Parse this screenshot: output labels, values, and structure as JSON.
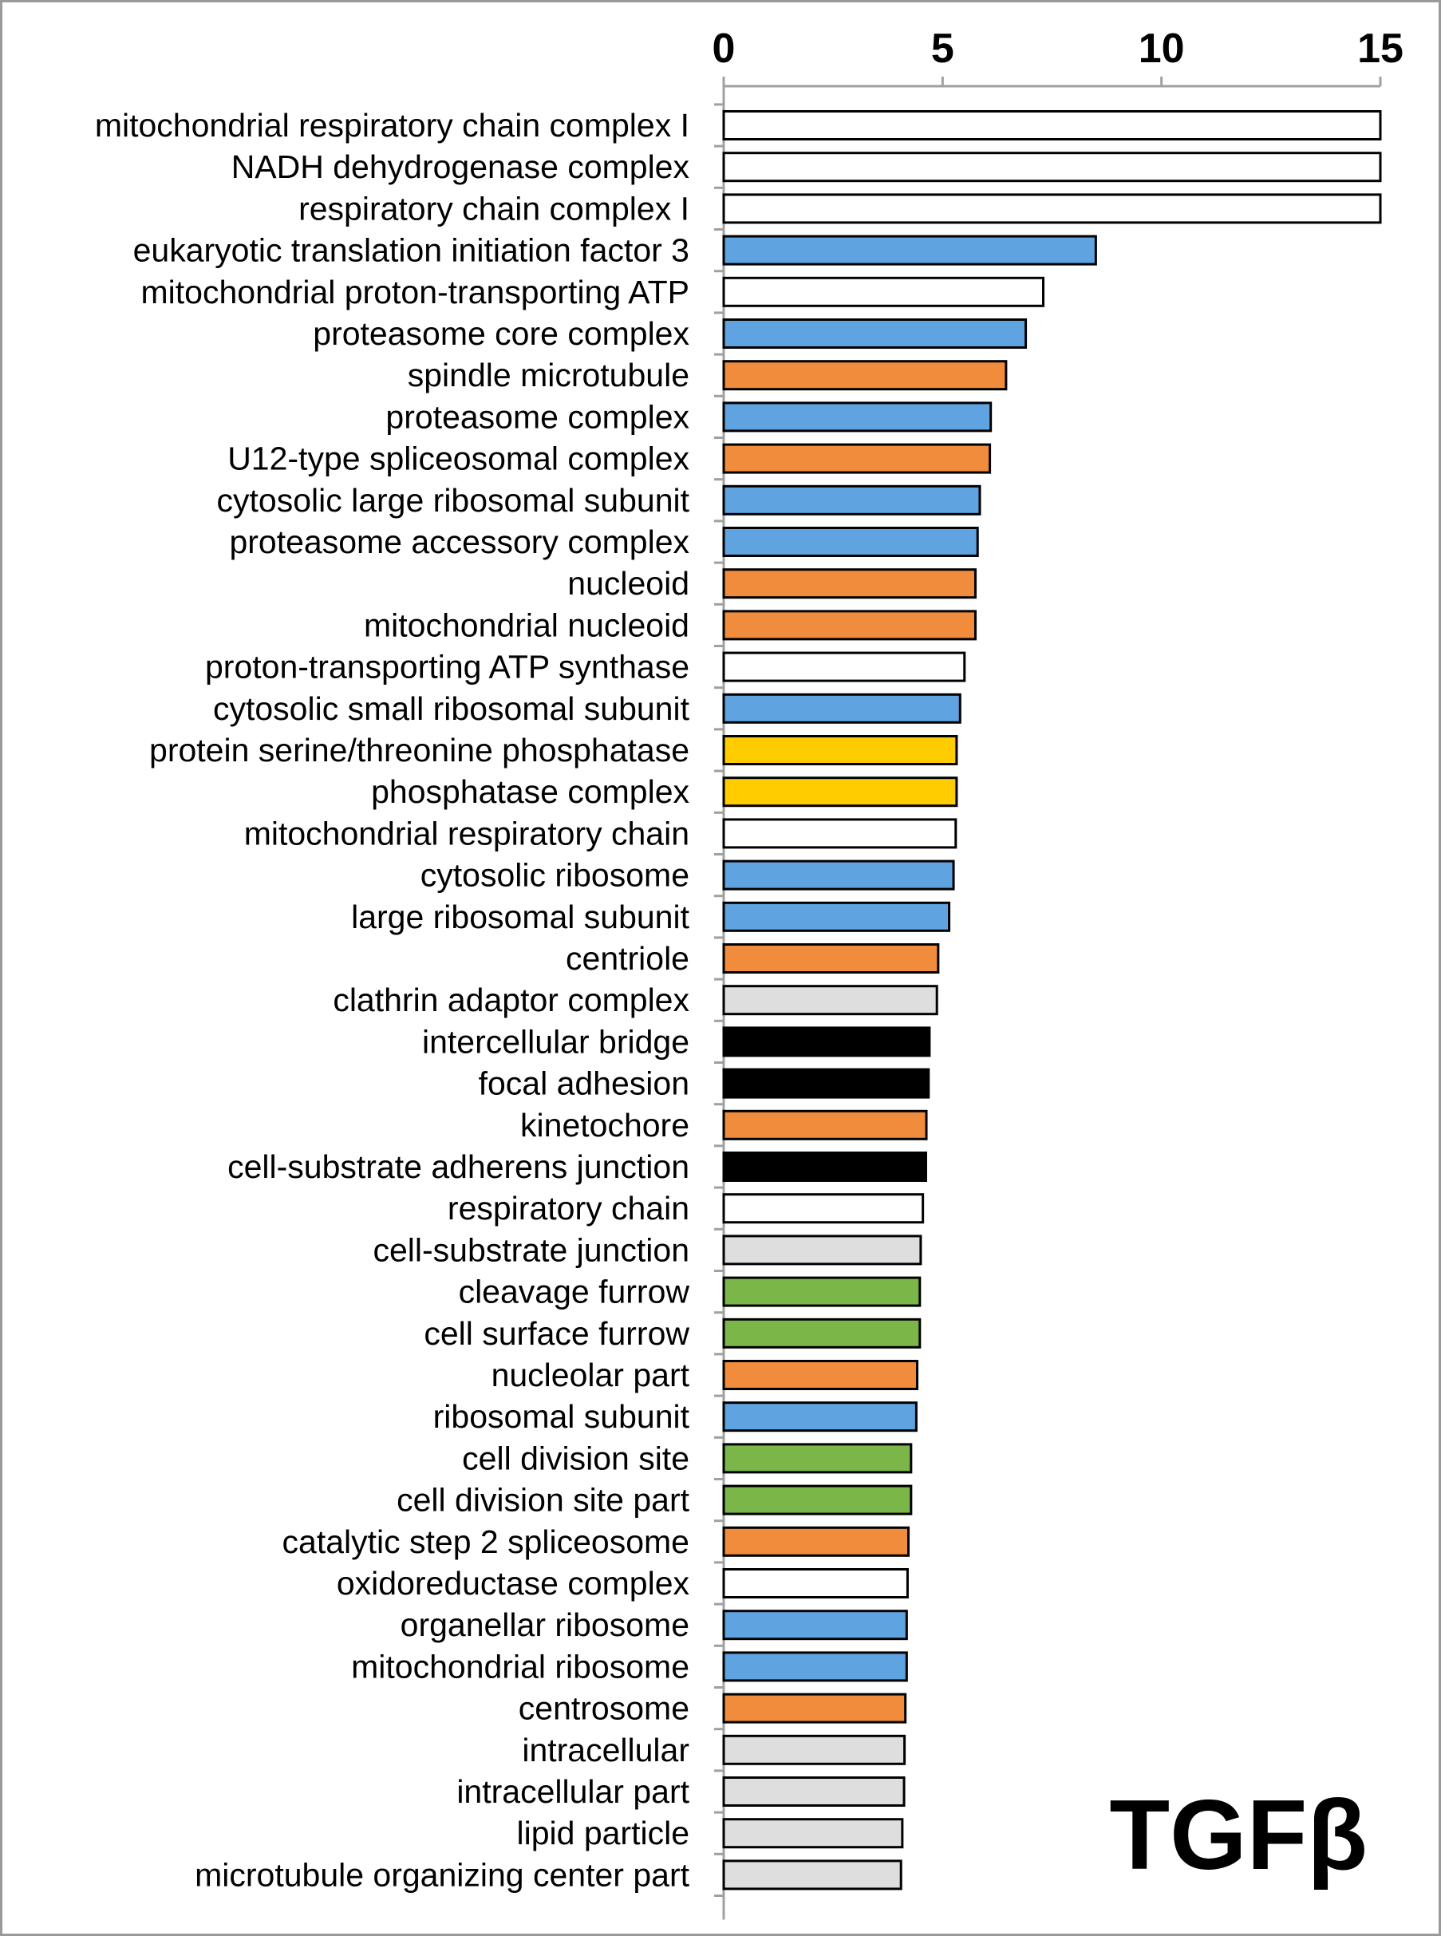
{
  "chart_data": {
    "type": "bar",
    "orientation": "horizontal",
    "title": "",
    "xlabel": "",
    "ylabel": "",
    "xlim": [
      0,
      15
    ],
    "xticks": [
      0,
      5,
      10,
      15
    ],
    "grid": false,
    "annotation": "TGFβ",
    "category_colors": {
      "white": "#ffffff",
      "blue": "#5fa3e0",
      "orange": "#f08c3c",
      "yellow": "#ffcc00",
      "gray": "#dedede",
      "black": "#000000",
      "green": "#7ab648"
    },
    "bars": [
      {
        "label": "mitochondrial respiratory chain complex I",
        "value": 15.0,
        "color": "white"
      },
      {
        "label": "NADH dehydrogenase complex",
        "value": 15.0,
        "color": "white"
      },
      {
        "label": "respiratory chain complex I",
        "value": 15.0,
        "color": "white"
      },
      {
        "label": "eukaryotic translation initiation factor 3",
        "value": 8.5,
        "color": "blue"
      },
      {
        "label": "mitochondrial proton-transporting ATP",
        "value": 7.3,
        "color": "white"
      },
      {
        "label": "proteasome core complex",
        "value": 6.9,
        "color": "blue"
      },
      {
        "label": "spindle microtubule",
        "value": 6.45,
        "color": "orange"
      },
      {
        "label": "proteasome complex",
        "value": 6.1,
        "color": "blue"
      },
      {
        "label": "U12-type spliceosomal complex",
        "value": 6.08,
        "color": "orange"
      },
      {
        "label": "cytosolic large ribosomal subunit",
        "value": 5.85,
        "color": "blue"
      },
      {
        "label": "proteasome accessory complex",
        "value": 5.8,
        "color": "blue"
      },
      {
        "label": "nucleoid",
        "value": 5.75,
        "color": "orange"
      },
      {
        "label": "mitochondrial nucleoid",
        "value": 5.75,
        "color": "orange"
      },
      {
        "label": "proton-transporting ATP synthase",
        "value": 5.5,
        "color": "white"
      },
      {
        "label": "cytosolic small ribosomal subunit",
        "value": 5.4,
        "color": "blue"
      },
      {
        "label": "protein serine/threonine phosphatase",
        "value": 5.32,
        "color": "yellow"
      },
      {
        "label": "phosphatase complex",
        "value": 5.32,
        "color": "yellow"
      },
      {
        "label": "mitochondrial respiratory chain",
        "value": 5.3,
        "color": "white"
      },
      {
        "label": "cytosolic ribosome",
        "value": 5.25,
        "color": "blue"
      },
      {
        "label": "large ribosomal subunit",
        "value": 5.15,
        "color": "blue"
      },
      {
        "label": "centriole",
        "value": 4.9,
        "color": "orange"
      },
      {
        "label": "clathrin adaptor complex",
        "value": 4.87,
        "color": "gray"
      },
      {
        "label": "intercellular bridge",
        "value": 4.7,
        "color": "black"
      },
      {
        "label": "focal adhesion",
        "value": 4.68,
        "color": "black"
      },
      {
        "label": "kinetochore",
        "value": 4.63,
        "color": "orange"
      },
      {
        "label": "cell-substrate adherens junction",
        "value": 4.62,
        "color": "black"
      },
      {
        "label": "respiratory chain",
        "value": 4.55,
        "color": "white"
      },
      {
        "label": "cell-substrate junction",
        "value": 4.5,
        "color": "gray"
      },
      {
        "label": "cleavage furrow",
        "value": 4.48,
        "color": "green"
      },
      {
        "label": "cell surface furrow",
        "value": 4.48,
        "color": "green"
      },
      {
        "label": "nucleolar part",
        "value": 4.42,
        "color": "orange"
      },
      {
        "label": "ribosomal subunit",
        "value": 4.4,
        "color": "blue"
      },
      {
        "label": "cell division site",
        "value": 4.28,
        "color": "green"
      },
      {
        "label": "cell division site part",
        "value": 4.28,
        "color": "green"
      },
      {
        "label": "catalytic step 2 spliceosome",
        "value": 4.22,
        "color": "orange"
      },
      {
        "label": "oxidoreductase complex",
        "value": 4.2,
        "color": "white"
      },
      {
        "label": "organellar ribosome",
        "value": 4.18,
        "color": "blue"
      },
      {
        "label": "mitochondrial ribosome",
        "value": 4.18,
        "color": "blue"
      },
      {
        "label": "centrosome",
        "value": 4.15,
        "color": "orange"
      },
      {
        "label": "intracellular",
        "value": 4.13,
        "color": "gray"
      },
      {
        "label": "intracellular part",
        "value": 4.12,
        "color": "gray"
      },
      {
        "label": "lipid particle",
        "value": 4.08,
        "color": "gray"
      },
      {
        "label": "microtubule organizing center part",
        "value": 4.05,
        "color": "gray"
      }
    ]
  }
}
